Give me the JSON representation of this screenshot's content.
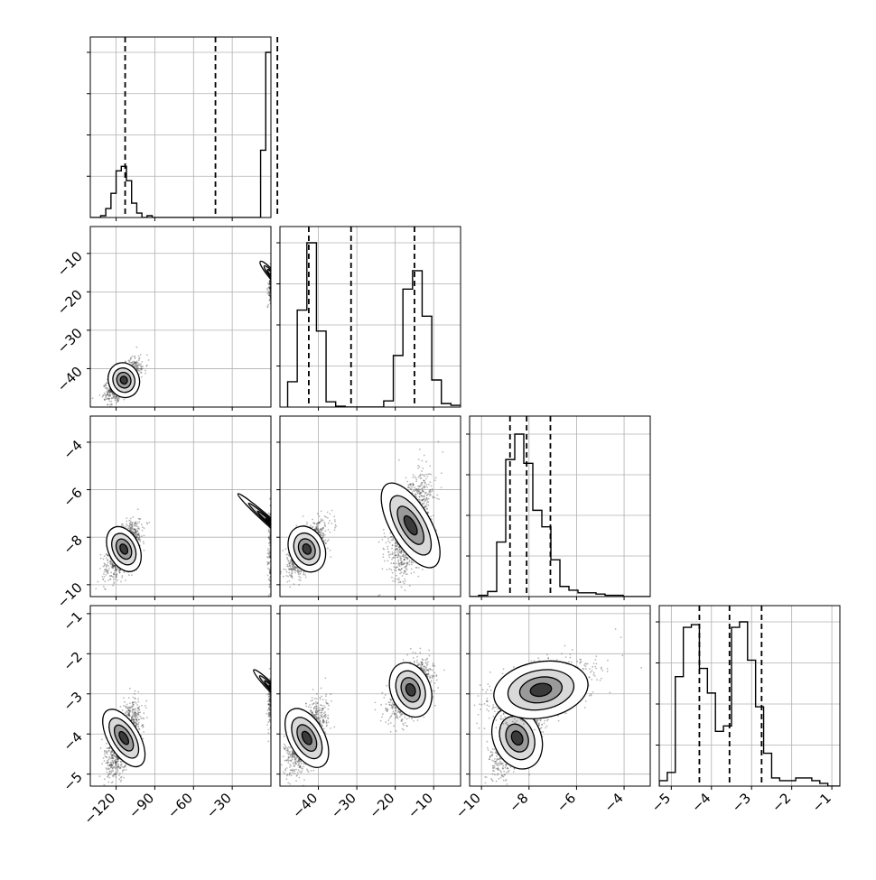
{
  "chart_data": {
    "type": "corner",
    "parameters": [
      {
        "range": [
          -140,
          0
        ],
        "ticks": [
          -120,
          -90,
          -60,
          -30
        ],
        "tick_labels": [
          "−120",
          "−90",
          "−60",
          "−30"
        ],
        "quantiles": [
          -113,
          -43,
          5
        ],
        "hist": {
          "start": -140,
          "width": 4,
          "counts": [
            0,
            0,
            2,
            10,
            27,
            52,
            57,
            41,
            16,
            5,
            0,
            2,
            0,
            0,
            0,
            0,
            0,
            0,
            0,
            0,
            0,
            0,
            0,
            0,
            0,
            0,
            0,
            0,
            0,
            0,
            0,
            0,
            0,
            75,
            184
          ]
        }
      },
      {
        "range": [
          -50,
          -3
        ],
        "ticks": [
          -40,
          -30,
          -20,
          -10
        ],
        "tick_labels": [
          "−40",
          "−30",
          "−20",
          "−10"
        ],
        "quantiles": [
          -42.5,
          -31.5,
          -15
        ],
        "hist": {
          "start": -48,
          "width": 2.5,
          "counts": [
            29,
            111,
            188,
            87,
            6,
            1,
            0,
            0,
            0,
            0,
            7,
            59,
            135,
            156,
            104,
            31,
            4,
            2
          ]
        }
      },
      {
        "range": [
          -10.5,
          -2.9
        ],
        "ticks": [
          -10,
          -8,
          -6,
          -4
        ],
        "tick_labels": [
          "−10",
          "−8",
          "−6",
          "−4"
        ],
        "quantiles": [
          -8.8,
          -8.1,
          -7.1
        ],
        "hist": {
          "start": -10.5,
          "width": 0.38,
          "counts": [
            0,
            1,
            4,
            43,
            108,
            128,
            105,
            68,
            55,
            29,
            8,
            5,
            3,
            3,
            2,
            1,
            1,
            0,
            0,
            0
          ]
        }
      },
      {
        "range": [
          -5.3,
          -0.8
        ],
        "ticks": [
          -5,
          -4,
          -3,
          -2,
          -1
        ],
        "tick_labels": [
          "−5",
          "−4",
          "−3",
          "−2",
          "−1"
        ],
        "quantiles": [
          -4.3,
          -3.55,
          -2.75
        ],
        "hist": {
          "start": -5.3,
          "width": 0.2,
          "counts": [
            2,
            5,
            40,
            58,
            59,
            43,
            34,
            20,
            22,
            58,
            60,
            46,
            29,
            12,
            3,
            2,
            2,
            3,
            3,
            2,
            1,
            0,
            0
          ]
        }
      }
    ],
    "axis_ticks": {
      "rows": [
        {
          "ticks": [
            -40,
            -30,
            -20,
            -10
          ],
          "labels": [
            "−40",
            "−30",
            "−20",
            "−10"
          ]
        },
        {
          "ticks": [
            -10,
            -8,
            -6,
            -4
          ],
          "labels": [
            "−10",
            "−8",
            "−6",
            "−4"
          ]
        },
        {
          "ticks": [
            -5,
            -4,
            -3,
            -2,
            -1
          ],
          "labels": [
            "−5",
            "−4",
            "−3",
            "−2",
            "−1"
          ]
        }
      ]
    },
    "modes": [
      {
        "means": [
          -114,
          -43,
          -8.5,
          -4.1
        ],
        "sds": [
          6,
          2.3,
          0.5,
          0.4
        ],
        "corr": 0.6,
        "weight": 0.5
      },
      {
        "means": [
          2,
          -16,
          -7.5,
          -2.9
        ],
        "sds": [
          1.5,
          2.6,
          1.0,
          0.35
        ],
        "corr": 0.5,
        "weight": 0.5
      }
    ],
    "grid": true,
    "style": {
      "line_color": "#000000",
      "point_color": "#333333",
      "grid_color": "#b0b0b0"
    }
  }
}
